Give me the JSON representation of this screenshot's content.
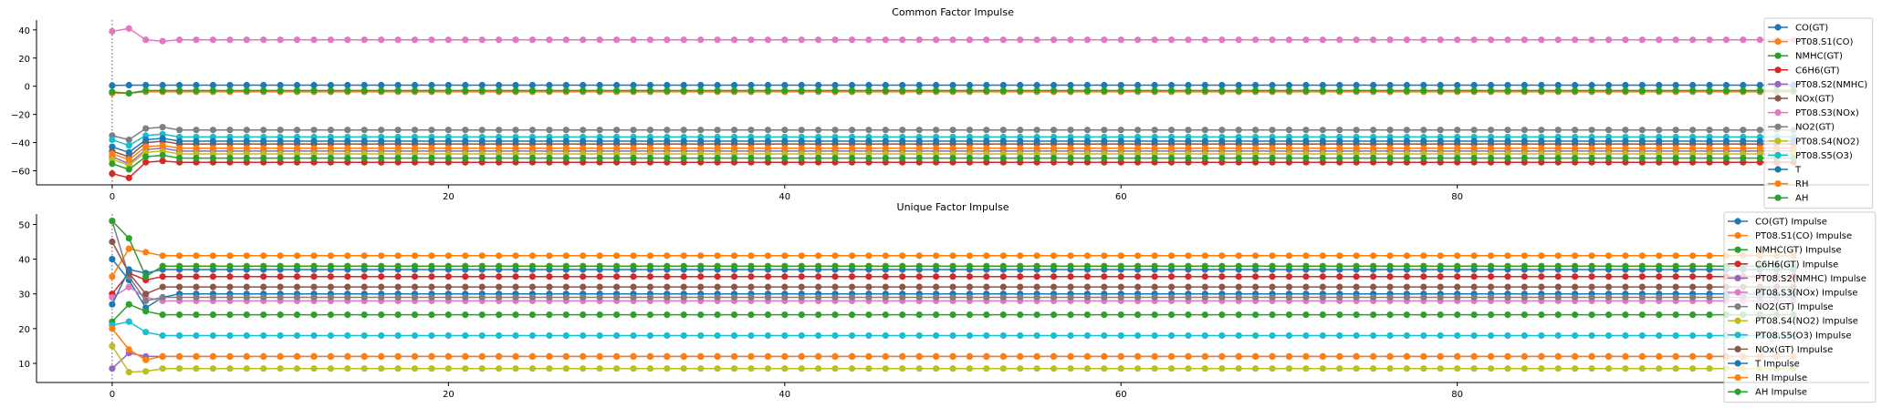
{
  "figure": {
    "background": "#ffffff"
  },
  "chart_data": [
    {
      "type": "line",
      "title": "Common Factor Impulse",
      "xlabel": "",
      "ylabel": "",
      "xlim": [
        -4.5,
        104.5
      ],
      "ylim": [
        -70,
        47
      ],
      "xticks": [
        0,
        20,
        40,
        60,
        80
      ],
      "yticks": [
        -60,
        -40,
        -20,
        0,
        20,
        40
      ],
      "vline_x": 0,
      "grid": false,
      "legend_position": "right",
      "legend": [
        "CO(GT)",
        "PT08.S1(CO)",
        "NMHC(GT)",
        "C6H6(GT)",
        "PT08.S2(NMHC)",
        "NOx(GT)",
        "PT08.S3(NOx)",
        "NO2(GT)",
        "PT08.S4(NO2)",
        "PT08.S5(O3)",
        "T",
        "RH",
        "AH"
      ],
      "x": {
        "start": 0,
        "end": 100,
        "step": 1
      },
      "series": [
        {
          "name": "CO(GT)",
          "color": "#1f77b4",
          "values": [
            0.5,
            0.8,
            0.8
          ],
          "steady": 0.8
        },
        {
          "name": "PT08.S1(CO)",
          "color": "#ff7f0e",
          "values": [
            -5,
            -5,
            -4,
            -4
          ],
          "steady": -4
        },
        {
          "name": "NMHC(GT)",
          "color": "#2ca02c",
          "values": [
            -4,
            -5,
            -3,
            -3
          ],
          "steady": -3
        },
        {
          "name": "C6H6(GT)",
          "color": "#d62728",
          "values": [
            -62,
            -65,
            -54,
            -53,
            -54
          ],
          "steady": -54
        },
        {
          "name": "PT08.S2(NMHC)",
          "color": "#9467bd",
          "values": [
            -50,
            -55,
            -45,
            -44,
            -46
          ],
          "steady": -46
        },
        {
          "name": "NOx(GT)",
          "color": "#8c564b",
          "values": [
            -46,
            -50,
            -40,
            -39,
            -41
          ],
          "steady": -41
        },
        {
          "name": "PT08.S3(NOx)",
          "color": "#e377c2",
          "values": [
            39,
            41,
            33,
            32,
            33
          ],
          "steady": 33
        },
        {
          "name": "NO2(GT)",
          "color": "#7f7f7f",
          "values": [
            -35,
            -38,
            -30,
            -29,
            -31
          ],
          "steady": -31
        },
        {
          "name": "PT08.S4(NO2)",
          "color": "#bcbd22",
          "values": [
            -52,
            -56,
            -47,
            -46,
            -48
          ],
          "steady": -48
        },
        {
          "name": "PT08.S5(O3)",
          "color": "#17becf",
          "values": [
            -38,
            -42,
            -35,
            -34,
            -36
          ],
          "steady": -36
        },
        {
          "name": "T",
          "color": "#1f77b4",
          "values": [
            -43,
            -47,
            -38,
            -37,
            -39
          ],
          "steady": -39
        },
        {
          "name": "RH",
          "color": "#ff7f0e",
          "values": [
            -48,
            -52,
            -43,
            -42,
            -44
          ],
          "steady": -44
        },
        {
          "name": "AH",
          "color": "#2ca02c",
          "values": [
            -55,
            -59,
            -50,
            -49,
            -51
          ],
          "steady": -51
        }
      ]
    },
    {
      "type": "line",
      "title": "Unique Factor Impulse",
      "xlabel": "",
      "ylabel": "",
      "xlim": [
        -4.5,
        104.5
      ],
      "ylim": [
        4.5,
        53
      ],
      "xticks": [
        0,
        20,
        40,
        60,
        80
      ],
      "yticks": [
        10,
        20,
        30,
        40,
        50
      ],
      "vline_x": 0,
      "grid": false,
      "legend_position": "right",
      "legend": [
        "CO(GT) Impulse",
        "PT08.S1(CO) Impulse",
        "NMHC(GT) Impulse",
        "C6H6(GT) Impulse",
        "PT08.S2(NMHC) Impulse",
        "PT08.S3(NOx) Impulse",
        "NO2(GT) Impulse",
        "PT08.S4(NO2) Impulse",
        "PT08.S5(O3) Impulse",
        "NOx(GT) Impulse",
        "T Impulse",
        "RH Impulse",
        "AH Impulse"
      ],
      "x": {
        "start": 0,
        "end": 100,
        "step": 1
      },
      "series": [
        {
          "name": "CO(GT) Impulse",
          "color": "#1f77b4",
          "values": [
            40,
            34,
            26,
            29,
            30
          ],
          "steady": 30
        },
        {
          "name": "PT08.S1(CO) Impulse",
          "color": "#ff7f0e",
          "values": [
            35,
            43,
            42,
            41,
            41
          ],
          "steady": 41
        },
        {
          "name": "NMHC(GT) Impulse",
          "color": "#2ca02c",
          "values": [
            22,
            27,
            25,
            24,
            24
          ],
          "steady": 24
        },
        {
          "name": "C6H6(GT) Impulse",
          "color": "#d62728",
          "values": [
            30,
            36,
            34,
            35,
            35
          ],
          "steady": 35
        },
        {
          "name": "PT08.S2(NMHC) Impulse",
          "color": "#9467bd",
          "values": [
            8.5,
            13,
            12,
            12,
            12
          ],
          "steady": 12
        },
        {
          "name": "PT08.S3(NOx) Impulse",
          "color": "#e377c2",
          "values": [
            29,
            32,
            29,
            28,
            28
          ],
          "steady": 28
        },
        {
          "name": "NO2(GT) Impulse",
          "color": "#7f7f7f",
          "values": [
            51,
            35,
            28,
            29,
            29
          ],
          "steady": 29
        },
        {
          "name": "PT08.S4(NO2) Impulse",
          "color": "#bcbd22",
          "values": [
            15,
            7.5,
            7.7,
            8.5,
            8.5
          ],
          "steady": 8.5
        },
        {
          "name": "PT08.S5(O3) Impulse",
          "color": "#17becf",
          "values": [
            21,
            22,
            19,
            18,
            18
          ],
          "steady": 18
        },
        {
          "name": "NOx(GT) Impulse",
          "color": "#8c564b",
          "values": [
            45,
            36,
            30,
            32,
            32
          ],
          "steady": 32
        },
        {
          "name": "T Impulse",
          "color": "#1f77b4",
          "values": [
            27,
            37,
            36,
            37,
            37
          ],
          "steady": 37
        },
        {
          "name": "RH Impulse",
          "color": "#ff7f0e",
          "values": [
            20,
            14,
            11,
            12,
            12
          ],
          "steady": 12
        },
        {
          "name": "AH Impulse",
          "color": "#2ca02c",
          "values": [
            51,
            46,
            35,
            38,
            38
          ],
          "steady": 38
        }
      ]
    }
  ]
}
